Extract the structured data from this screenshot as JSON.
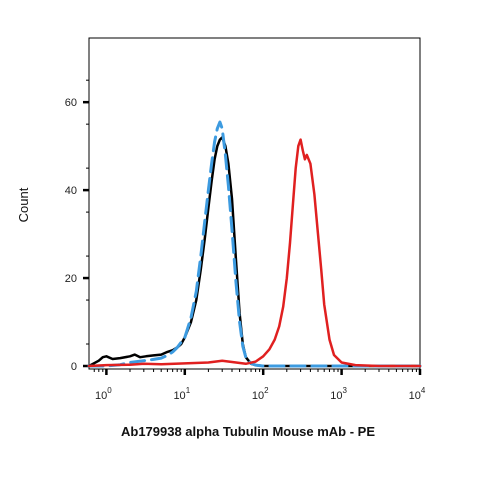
{
  "chart_data": {
    "type": "line",
    "title": "",
    "xlabel": "Ab179938 alpha Tubulin Mouse mAb - PE",
    "ylabel": "Count",
    "x_scale": "log",
    "xlim": [
      0.6,
      10000
    ],
    "ylim": [
      0,
      68
    ],
    "x_ticks": [
      {
        "value": 1,
        "base": "10",
        "exp": "0"
      },
      {
        "value": 10,
        "base": "10",
        "exp": "1"
      },
      {
        "value": 100,
        "base": "10",
        "exp": "2"
      },
      {
        "value": 1000,
        "base": "10",
        "exp": "3"
      },
      {
        "value": 10000,
        "base": "10",
        "exp": "4"
      }
    ],
    "y_ticks": [
      "0",
      "20",
      "40",
      "60"
    ],
    "grid": false,
    "legend": "none",
    "series": [
      {
        "color": "#000000",
        "style": "solid",
        "x": [
          0.6,
          0.8,
          0.9,
          1.0,
          1.2,
          1.5,
          2.0,
          2.3,
          2.7,
          3.2,
          4.0,
          5.0,
          6.0,
          7.0,
          8.0,
          9.0,
          10.0,
          12.0,
          14.0,
          16.0,
          18.0,
          20.0,
          22.0,
          24.0,
          26.0,
          28.0,
          30.0,
          33.0,
          36.0,
          40.0,
          45.0,
          50.0,
          55.0,
          60.0,
          70.0,
          80.0,
          100.0,
          10000
        ],
        "y": [
          0,
          1.2,
          2.0,
          2.2,
          1.6,
          1.8,
          2.2,
          2.6,
          2.0,
          2.2,
          2.4,
          2.6,
          3.2,
          3.6,
          4.2,
          5.0,
          6.5,
          10,
          15,
          22,
          29,
          36,
          42,
          47,
          50,
          51.5,
          52,
          50,
          46,
          38,
          24,
          12,
          5,
          2,
          0.5,
          0.2,
          0,
          0
        ]
      },
      {
        "color": "#3d9be0",
        "style": "dashed",
        "x": [
          0.6,
          1.0,
          1.5,
          2.0,
          3.0,
          4.0,
          5.0,
          6.0,
          7.0,
          8.0,
          10.0,
          12.0,
          14.0,
          16.0,
          18.0,
          20.0,
          22.0,
          24.0,
          26.0,
          28.0,
          30.0,
          33.0,
          36.0,
          40.0,
          45.0,
          50.0,
          55.0,
          60.0,
          70.0,
          80.0,
          100.0,
          200.0,
          10000
        ],
        "y": [
          0,
          0,
          0.3,
          0.8,
          1.2,
          1.5,
          1.8,
          2.4,
          3.2,
          4.2,
          6.5,
          11,
          17,
          25,
          33,
          40,
          46,
          51,
          54,
          55.5,
          54,
          48,
          41,
          31,
          19,
          10,
          4.5,
          2,
          0.6,
          0.2,
          0,
          0,
          0
        ]
      },
      {
        "color": "#e02020",
        "style": "solid",
        "x": [
          0.6,
          1.0,
          2.0,
          3.0,
          5.0,
          10.0,
          20.0,
          30.0,
          45.0,
          60.0,
          80.0,
          100.0,
          120.0,
          140.0,
          160.0,
          180.0,
          200.0,
          220.0,
          240.0,
          260.0,
          280.0,
          300.0,
          320.0,
          340.0,
          360.0,
          400.0,
          450.0,
          500.0,
          550.0,
          600.0,
          700.0,
          800.0,
          1000.0,
          1500.0,
          3000.0,
          10000
        ],
        "y": [
          0,
          0.2,
          0.3,
          0.5,
          0.4,
          0.6,
          0.8,
          1.2,
          0.8,
          0.5,
          1.0,
          2.2,
          3.8,
          6.0,
          9.0,
          13.5,
          20,
          28,
          37,
          45,
          50,
          51.5,
          49,
          47,
          48,
          46,
          39,
          30,
          22,
          14,
          6,
          2.5,
          0.8,
          0.2,
          0,
          0
        ]
      }
    ]
  }
}
